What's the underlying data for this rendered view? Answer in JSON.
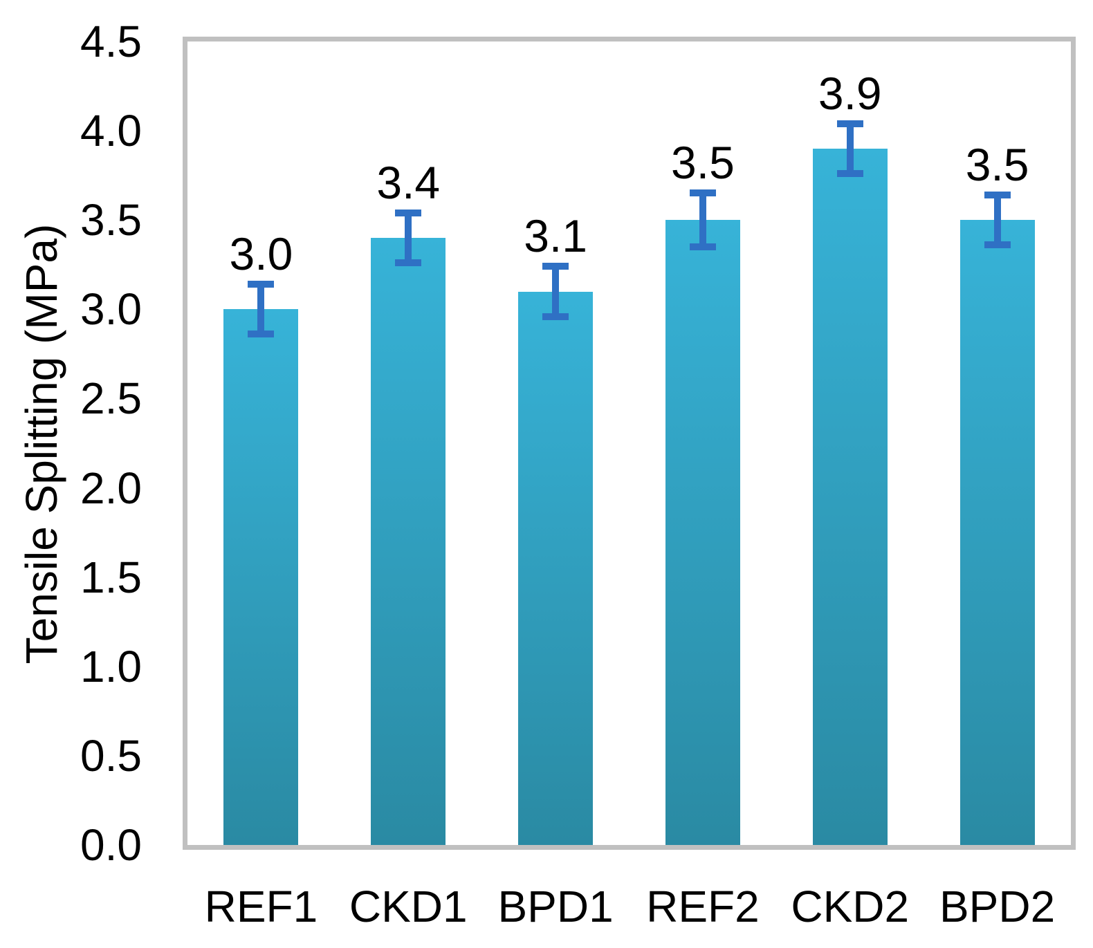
{
  "chart_data": {
    "type": "bar",
    "title": "",
    "xlabel": "",
    "ylabel": "Tensile Splitting (MPa)",
    "categories": [
      "REF1",
      "CKD1",
      "BPD1",
      "REF2",
      "CKD2",
      "BPD2"
    ],
    "values": [
      3.0,
      3.4,
      3.1,
      3.5,
      3.9,
      3.5
    ],
    "data_labels": [
      "3.0",
      "3.4",
      "3.1",
      "3.5",
      "3.9",
      "3.5"
    ],
    "error_bars": [
      0.14,
      0.14,
      0.14,
      0.15,
      0.14,
      0.14
    ],
    "ylim": [
      0,
      4.5
    ],
    "ytick_step": 0.5,
    "ytick_labels": [
      "0.0",
      "0.5",
      "1.0",
      "1.5",
      "2.0",
      "2.5",
      "3.0",
      "3.5",
      "4.0",
      "4.5"
    ],
    "grid": false,
    "legend": false,
    "colors": {
      "bar_gradient_top": "#37B3D8",
      "bar_gradient_bottom": "#2A8AA3",
      "error_bar": "#2F70C4",
      "plot_border": "#C0C0C0",
      "text": "#000000"
    }
  }
}
